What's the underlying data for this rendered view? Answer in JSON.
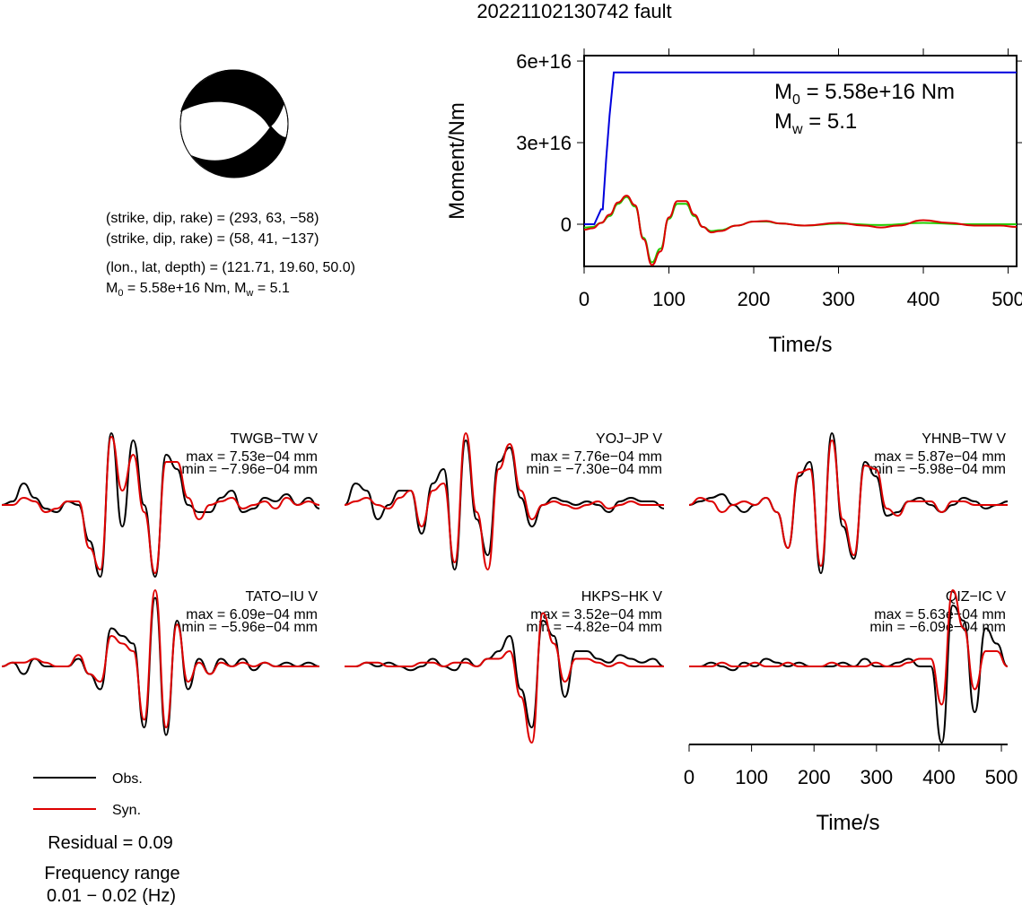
{
  "title": "20221102130742 fault",
  "mechanism": {
    "line1": "(strike, dip, rake) = (293, 63, −58)",
    "line2": "(strike, dip, rake) = (58, 41, −137)",
    "line3": "(lon., lat, depth) = (121.71, 19.60, 50.0)",
    "m0_prefix": "M",
    "m0_sub": "0",
    "m0_rest": " = 5.58e+16 Nm, M",
    "mw_sub": "w",
    "mw_rest": " = 5.1"
  },
  "legend": {
    "obs": "Obs.",
    "syn": "Syn."
  },
  "residual": "Residual = 0.09",
  "frequency": {
    "line1": "Frequency range",
    "line2": "0.01 − 0.02 (Hz)"
  },
  "colors": {
    "obs": "#000000",
    "syn": "#dd0000",
    "moment": "#0000dd",
    "stf_green": "#22cc00",
    "stf_red": "#dd0000"
  },
  "chart_data": [
    {
      "type": "line",
      "name": "moment-function",
      "xlabel": "Time/s",
      "ylabel": "Moment/Nm",
      "xlim": [
        0,
        510
      ],
      "ylim": [
        -1.55e+16,
        6.2e+16
      ],
      "xticks": [
        0,
        100,
        200,
        300,
        400,
        500
      ],
      "xtick_labels": [
        "0",
        "100",
        "200",
        "300",
        "400",
        "500"
      ],
      "yticks": [
        0,
        3e+16,
        6e+16
      ],
      "ytick_labels": [
        "0",
        "3e+16",
        "6e+16"
      ],
      "annotation": {
        "m0_prefix": "M",
        "m0_sub": "0",
        "m0_rest": " = 5.58e+16 Nm",
        "mw_prefix": "M",
        "mw_sub": "w",
        "mw_rest": " = 5.1"
      },
      "cumulative": {
        "x": [
          0,
          12,
          20,
          22,
          26,
          30,
          35,
          40,
          510
        ],
        "y": [
          0,
          0,
          5500000000000000.0,
          5500000000000000.0,
          2.4e+16,
          4e+16,
          5.58e+16,
          5.58e+16,
          5.58e+16
        ]
      },
      "rate_green": {
        "x": [
          0,
          10,
          20,
          30,
          40,
          50,
          60,
          70,
          80,
          90,
          100,
          110,
          120,
          130,
          140,
          150,
          160,
          180,
          200,
          215,
          230,
          260,
          300,
          350,
          400,
          450,
          510
        ],
        "y": [
          -1200000000000000.0,
          -1000000000000000.0,
          500000000000000.0,
          3000000000000000.0,
          7500000000000000.0,
          1e+16,
          6500000000000000.0,
          -5000000000000000.0,
          -1.4e+16,
          -9000000000000000.0,
          2000000000000000.0,
          7500000000000000.0,
          7500000000000000.0,
          3000000000000000.0,
          -1000000000000000.0,
          -2500000000000000.0,
          -2200000000000000.0,
          -500000000000000.0,
          1000000000000000.0,
          1000000000000000.0,
          300000000000000.0,
          -500000000000000.0,
          200000000000000.0,
          -300000000000000.0,
          500000000000000.0,
          0.0,
          0.0
        ]
      },
      "rate_red": {
        "x": [
          0,
          10,
          20,
          30,
          40,
          50,
          60,
          70,
          80,
          90,
          100,
          110,
          120,
          130,
          140,
          150,
          160,
          180,
          200,
          215,
          230,
          260,
          300,
          330,
          350,
          370,
          400,
          430,
          460,
          490,
          510
        ],
        "y": [
          -2000000000000000.0,
          -1500000000000000.0,
          500000000000000.0,
          3500000000000000.0,
          8000000000000000.0,
          1.05e+16,
          7000000000000000.0,
          -5500000000000000.0,
          -1.5e+16,
          -1e+16,
          2500000000000000.0,
          8500000000000000.0,
          8500000000000000.0,
          3500000000000000.0,
          -1000000000000000.0,
          -3000000000000000.0,
          -2500000000000000.0,
          -500000000000000.0,
          1000000000000000.0,
          1200000000000000.0,
          300000000000000.0,
          -500000000000000.0,
          500000000000000.0,
          -500000000000000.0,
          -1200000000000000.0,
          -500000000000000.0,
          1500000000000000.0,
          500000000000000.0,
          -500000000000000.0,
          -500000000000000.0,
          -1000000000000000.0
        ]
      }
    },
    {
      "type": "line",
      "name": "waveforms",
      "xlabel": "Time/s",
      "xlim": [
        0,
        510
      ],
      "xticks": [
        0,
        100,
        200,
        300,
        400,
        500
      ],
      "xtick_labels": [
        "0",
        "100",
        "200",
        "300",
        "400",
        "500"
      ],
      "stations": [
        {
          "label": "TWGB−TW V",
          "max": "max = 7.53e−04 mm",
          "min": "min = −7.96e−04 mm",
          "obs": [
            0,
            0.05,
            0.3,
            0.1,
            -0.05,
            -0.1,
            0.05,
            0,
            -0.5,
            -1.0,
            1.0,
            -0.3,
            0.9,
            0,
            -1.0,
            0.7,
            0.5,
            0,
            -0.1,
            -0.1,
            0.1,
            0.2,
            -0.1,
            -0.05,
            0.1,
            0.05,
            0.15,
            0,
            0.1,
            -0.05
          ],
          "syn": [
            0,
            0,
            0.1,
            0.05,
            -0.1,
            -0.05,
            0.05,
            0.05,
            -0.6,
            -0.9,
            0.95,
            0.2,
            0.7,
            -0.1,
            -0.95,
            0.6,
            0.6,
            0.1,
            -0.2,
            0,
            0.05,
            0.1,
            -0.05,
            0,
            0.05,
            -0.05,
            0.1,
            0,
            0.05,
            0
          ]
        },
        {
          "label": "YOJ−JP V",
          "max": "max = 7.76e−04 mm",
          "min": "min = −7.30e−04 mm",
          "obs": [
            0,
            0.3,
            0.2,
            -0.2,
            0,
            0.2,
            0.2,
            -0.4,
            0.3,
            0.5,
            -0.9,
            0.9,
            -0.2,
            -0.7,
            0.6,
            0.8,
            0.1,
            -0.3,
            0,
            0.1,
            0.05,
            0,
            0.05,
            0,
            -0.1,
            0.05,
            0.1,
            0.05,
            0.05,
            -0.05
          ],
          "syn": [
            0,
            0.05,
            0.1,
            0,
            -0.05,
            0.1,
            0.2,
            -0.3,
            0.2,
            0.3,
            -0.8,
            1.0,
            -0.1,
            -0.9,
            0.5,
            0.85,
            0.2,
            -0.2,
            0,
            0.05,
            0,
            -0.05,
            0,
            0.05,
            -0.05,
            0,
            0.05,
            0,
            0,
            0
          ]
        },
        {
          "label": "YHNB−TW V",
          "max": "max = 5.87e−04 mm",
          "min": "min = −5.98e−04 mm",
          "obs": [
            0,
            0.05,
            0.1,
            0.15,
            0,
            -0.1,
            0,
            0.1,
            -0.1,
            -0.6,
            0.4,
            0.6,
            -0.95,
            1.0,
            -0.3,
            -0.75,
            0.6,
            0.4,
            -0.15,
            -0.1,
            0.05,
            0.1,
            0,
            -0.1,
            0,
            0.1,
            0.05,
            -0.05,
            0,
            0.05
          ],
          "syn": [
            0,
            0.1,
            0.05,
            -0.1,
            0,
            0.05,
            0,
            0.1,
            -0.1,
            -0.6,
            0.45,
            0.5,
            -0.85,
            0.9,
            -0.2,
            -0.7,
            0.55,
            0.5,
            -0.05,
            -0.15,
            0.05,
            0.05,
            0.05,
            -0.1,
            0.05,
            0.05,
            0,
            0,
            0,
            0
          ]
        },
        {
          "label": "TATO−IU V",
          "max": "max = 6.09e−04 mm",
          "min": "min = −5.96e−04 mm",
          "obs": [
            0,
            0.05,
            -0.1,
            0.1,
            0,
            0,
            0,
            0.1,
            -0.1,
            -0.3,
            0.5,
            0.4,
            0.3,
            -0.8,
            0.9,
            -0.9,
            0.6,
            -0.3,
            0.1,
            -0.1,
            0.1,
            0,
            0.1,
            -0.05,
            0.05,
            0,
            0.05,
            0,
            0.05,
            0
          ],
          "syn": [
            0,
            0.05,
            0.05,
            0.1,
            0.05,
            0,
            0,
            0.15,
            -0.1,
            -0.2,
            0.4,
            0.3,
            0.2,
            -0.7,
            1.0,
            -0.8,
            0.55,
            -0.2,
            0.05,
            -0.1,
            0.05,
            0,
            0.05,
            0,
            0.05,
            0,
            0,
            0,
            0,
            0
          ]
        },
        {
          "label": "HKPS−HK V",
          "max": "max = 3.52e−04 mm",
          "min": "min = −4.82e−04 mm",
          "obs": [
            0,
            0,
            0.05,
            0,
            0.05,
            0,
            -0.05,
            0,
            0.1,
            0,
            -0.05,
            0.1,
            0,
            0.1,
            0.2,
            0.4,
            -0.3,
            -0.8,
            0.6,
            0.4,
            -0.4,
            0.2,
            0.2,
            0.1,
            0.05,
            0.15,
            0.1,
            0.05,
            0.1,
            0
          ],
          "syn": [
            0,
            0,
            0.05,
            0.05,
            0,
            0,
            0,
            0.05,
            0.05,
            0,
            0.05,
            0.05,
            0,
            0.1,
            0.1,
            0.2,
            -0.4,
            -1.0,
            0.7,
            0.3,
            -0.2,
            0.1,
            0.1,
            0.05,
            0,
            0.05,
            0,
            0,
            0,
            0
          ]
        },
        {
          "label": "QIZ−IC V",
          "max": "max = 5.63e−04 mm",
          "min": "min = −6.09e−04 mm",
          "obs": [
            0,
            0,
            0.05,
            0,
            -0.05,
            0.05,
            0,
            0.1,
            0.05,
            0,
            0.05,
            0,
            0,
            0,
            0.05,
            0,
            0.1,
            0,
            0,
            0.05,
            0.1,
            0,
            0,
            -1.0,
            0.8,
            0.6,
            -0.6,
            0.5,
            0.3,
            0
          ],
          "syn": [
            0,
            0,
            0,
            0.05,
            0,
            0,
            0.05,
            0,
            0,
            0.05,
            0,
            0,
            0,
            0.05,
            0,
            0,
            0,
            0.05,
            0,
            0,
            0.05,
            0.1,
            0.1,
            -0.5,
            1.0,
            0.5,
            -0.3,
            0.2,
            0.2,
            0
          ]
        }
      ]
    }
  ]
}
